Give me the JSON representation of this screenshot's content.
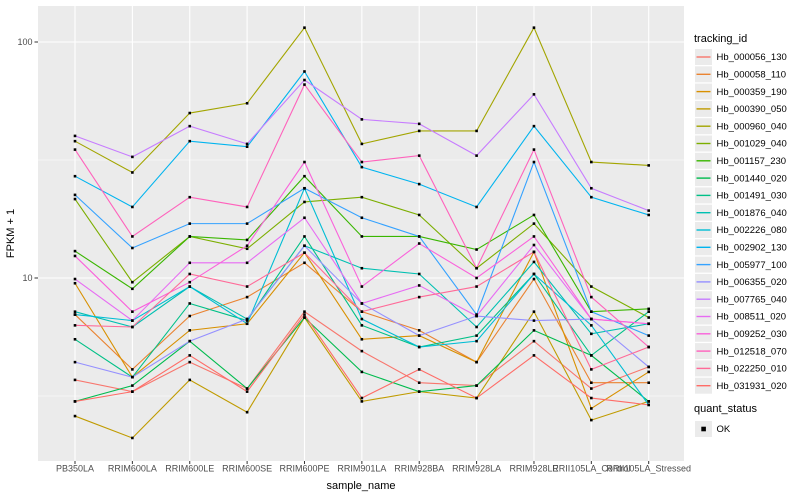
{
  "chart_data": {
    "type": "line",
    "title": "",
    "xlabel": "sample_name",
    "ylabel": "FPKM + 1",
    "y_scale": "log10",
    "y_ticks": [
      100,
      10
    ],
    "y_tick_labels": [
      "100",
      "10"
    ],
    "y_minor_gridlines": [
      31.62,
      3.162
    ],
    "ylim": [
      1.7,
      140
    ],
    "grid": "on",
    "legend_position": "right",
    "legend_title": "tracking_id",
    "legend2_title": "quant_status",
    "legend2_items": [
      {
        "label": "OK",
        "marker": "black-square"
      }
    ],
    "point_marker": "square",
    "categories": [
      "PB350LA",
      "RRIM600LA",
      "RRIM600LE",
      "RRIM600SE",
      "RRIM600PE",
      "RRIM901LA",
      "RRIM928BA",
      "RRIM928LA",
      "RRIM928LE",
      "RRII105LA_Control",
      "RRII105LA_Stressed"
    ],
    "series": [
      {
        "name": "Hb_000056_130",
        "color": "#F8766D",
        "values": [
          3.7,
          3.3,
          4.4,
          3.4,
          7.2,
          4.9,
          3.6,
          3.5,
          5.4,
          3.4,
          4.2
        ]
      },
      {
        "name": "Hb_000058_110",
        "color": "#EA8331",
        "values": [
          7.0,
          4.1,
          6.9,
          8.3,
          11.6,
          7.2,
          6.0,
          4.4,
          9.9,
          3.6,
          3.6
        ]
      },
      {
        "name": "Hb_000359_190",
        "color": "#D89000",
        "values": [
          9.5,
          3.8,
          6.0,
          6.4,
          12.8,
          5.5,
          5.7,
          4.4,
          12.9,
          2.8,
          4.0
        ]
      },
      {
        "name": "Hb_000390_050",
        "color": "#C09B00",
        "values": [
          2.6,
          2.1,
          3.7,
          2.7,
          6.8,
          3.0,
          3.3,
          3.1,
          7.2,
          2.5,
          3.0
        ]
      },
      {
        "name": "Hb_000960_040",
        "color": "#A3A500",
        "values": [
          38,
          28,
          50,
          55,
          115,
          37,
          42,
          42,
          115,
          31,
          30
        ]
      },
      {
        "name": "Hb_001029_040",
        "color": "#7CAE00",
        "values": [
          21.6,
          9.6,
          15.0,
          13.3,
          21.0,
          22.0,
          18.5,
          11.0,
          17.0,
          9.2,
          6.8
        ]
      },
      {
        "name": "Hb_001157_230",
        "color": "#39B600",
        "values": [
          13.0,
          9.0,
          15.0,
          14.5,
          27.0,
          15.0,
          15.0,
          13.2,
          18.5,
          7.2,
          7.4
        ]
      },
      {
        "name": "Hb_001440_020",
        "color": "#00BB4E",
        "values": [
          3.0,
          3.5,
          5.4,
          3.4,
          6.8,
          4.0,
          3.3,
          3.5,
          6.0,
          4.7,
          3.0
        ]
      },
      {
        "name": "Hb_001491_030",
        "color": "#00C087",
        "values": [
          5.5,
          3.8,
          7.8,
          6.6,
          15.0,
          6.3,
          5.1,
          5.7,
          10.4,
          4.7,
          7.2
        ]
      },
      {
        "name": "Hb_001876_040",
        "color": "#00C0B2",
        "values": [
          7.2,
          6.2,
          9.2,
          6.7,
          13.7,
          11.0,
          10.4,
          6.2,
          11.7,
          5.8,
          6.4
        ]
      },
      {
        "name": "Hb_002226_080",
        "color": "#00BDD4",
        "values": [
          7.0,
          6.6,
          9.2,
          6.4,
          24.0,
          6.7,
          5.1,
          5.4,
          10.4,
          6.3,
          2.9
        ]
      },
      {
        "name": "Hb_002902_130",
        "color": "#00B4EF",
        "values": [
          27.0,
          20.0,
          38.0,
          36.0,
          75.0,
          29.5,
          25.0,
          20.0,
          44.0,
          22.0,
          18.5
        ]
      },
      {
        "name": "Hb_005977_100",
        "color": "#35A2FF",
        "values": [
          22.5,
          13.4,
          17.0,
          17.0,
          24.0,
          18.0,
          15.0,
          7.0,
          31.0,
          7.2,
          5.7
        ]
      },
      {
        "name": "Hb_006355_020",
        "color": "#9590FF",
        "values": [
          4.4,
          3.8,
          5.4,
          6.7,
          13.7,
          7.8,
          5.7,
          6.9,
          6.6,
          6.7,
          4.2
        ]
      },
      {
        "name": "Hb_007765_040",
        "color": "#C77CFF",
        "values": [
          40.0,
          32.6,
          44.0,
          37.0,
          69.0,
          47.0,
          45.0,
          33.0,
          60.0,
          24.0,
          19.3
        ]
      },
      {
        "name": "Hb_008511_020",
        "color": "#E76BF3",
        "values": [
          9.9,
          6.6,
          11.6,
          11.6,
          18.0,
          7.8,
          9.3,
          6.9,
          13.8,
          6.7,
          6.4
        ]
      },
      {
        "name": "Hb_009252_030",
        "color": "#FA62DB",
        "values": [
          12.4,
          7.2,
          9.6,
          13.7,
          31.0,
          9.2,
          14.0,
          10.0,
          15.0,
          6.7,
          6.4
        ]
      },
      {
        "name": "Hb_012518_070",
        "color": "#FF62BC",
        "values": [
          35.0,
          15.0,
          22.0,
          20.0,
          66.0,
          31.0,
          33.0,
          11.0,
          35.0,
          8.3,
          5.1
        ]
      },
      {
        "name": "Hb_022250_010",
        "color": "#FF6A98",
        "values": [
          6.3,
          6.2,
          10.4,
          9.2,
          12.8,
          7.2,
          8.3,
          9.2,
          12.9,
          4.1,
          5.1
        ]
      },
      {
        "name": "Hb_031931_020",
        "color": "#FF6C67",
        "values": [
          3.0,
          3.3,
          4.7,
          3.3,
          7.0,
          3.1,
          4.1,
          3.1,
          4.7,
          3.1,
          2.9
        ]
      }
    ]
  },
  "theme": {
    "panel_bg": "#EBEBEB",
    "grid_color": "#FFFFFF",
    "axis_text_color": "#4D4D4D",
    "title_text_color": "#000000",
    "point_color": "#000000",
    "legend_key_bg": "#EBEBEB"
  }
}
